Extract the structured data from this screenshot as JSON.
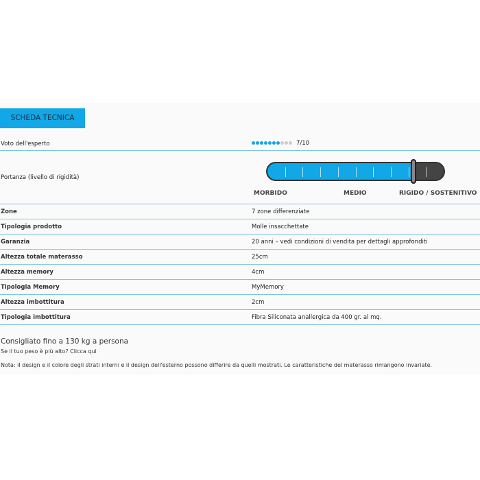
{
  "title": "SCHEDA TECNICA",
  "rating": {
    "label": "Voto dell'esperto",
    "value": 7,
    "max": 10,
    "text": "7/10",
    "colors": {
      "on": "#12a7e6",
      "off": "#cccccc"
    }
  },
  "firmness": {
    "label": "Portanza (livello di rigidità)",
    "level_percent": 83,
    "segments": 10,
    "scale": [
      "MORBIDO",
      "MEDIO",
      "RIGIDO / SOSTENITIVO"
    ]
  },
  "specs": [
    {
      "label": "Zone",
      "value": "7 zone differenziate"
    },
    {
      "label": "Tipologia prodotto",
      "value": "Molle insacchettate"
    },
    {
      "label": "Garanzia",
      "value": "20 anni – vedi condizioni di vendita per dettagli approfonditi"
    },
    {
      "label": "Altezza totale materasso",
      "value": "25cm"
    },
    {
      "label": "Altezza memory",
      "value": "4cm"
    },
    {
      "label": "Tipologia Memory",
      "value": "MyMemory"
    },
    {
      "label": "Altezza imbottitura",
      "value": "2cm"
    },
    {
      "label": "Tipologia imbottitura",
      "value": "Fibra Siliconata anallergica da 400 gr. al mq."
    }
  ],
  "recommended": "Consigliato fino a 130 kg a persona",
  "weight_link": "Se il tuo peso è più alto? Clicca qui",
  "note": "Nota: il design e il colore degli strati interni e il design dell'esterno possono differire da quelli mostrati. Le caratteristiche del materasso rimangono invariate."
}
